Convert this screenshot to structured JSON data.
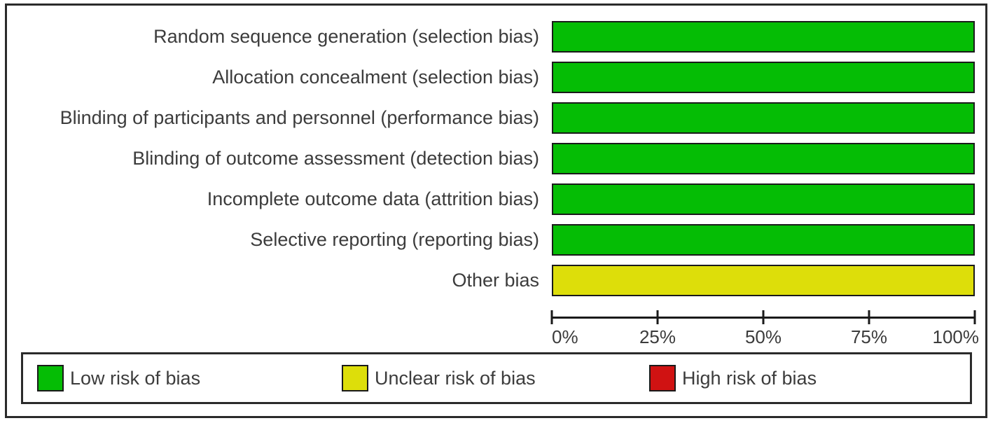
{
  "chart_data": {
    "type": "bar",
    "orientation": "horizontal",
    "stacked": true,
    "title": "",
    "xlabel": "",
    "ylabel": "",
    "grid": false,
    "legend_position": "bottom",
    "xlim": [
      0,
      100
    ],
    "categories": [
      "Random sequence generation (selection bias)",
      "Allocation concealment (selection bias)",
      "Blinding of participants and personnel (performance bias)",
      "Blinding of outcome assessment (detection bias)",
      "Incomplete outcome data (attrition bias)",
      "Selective reporting (reporting bias)",
      "Other bias"
    ],
    "series": [
      {
        "name": "Low risk of bias",
        "color": "#05BD05",
        "values": [
          100,
          100,
          100,
          100,
          100,
          100,
          0
        ]
      },
      {
        "name": "Unclear risk of bias",
        "color": "#DDDE0A",
        "values": [
          0,
          0,
          0,
          0,
          0,
          0,
          100
        ]
      },
      {
        "name": "High risk of bias",
        "color": "#D01212",
        "values": [
          0,
          0,
          0,
          0,
          0,
          0,
          0
        ]
      }
    ],
    "x_ticks": [
      {
        "label": "0%",
        "value": 0
      },
      {
        "label": "25%",
        "value": 25
      },
      {
        "label": "50%",
        "value": 50
      },
      {
        "label": "75%",
        "value": 75
      },
      {
        "label": "100%",
        "value": 100
      }
    ]
  },
  "colors": {
    "background": "#ffffff",
    "frame_border": "#2b2b2b",
    "bar_border": "#1a1a1a",
    "axis": "#1a1a1a",
    "text": "#3c3c3c",
    "low_risk": "#05BD05",
    "unclear_risk": "#DDDE0A",
    "high_risk": "#D01212"
  }
}
